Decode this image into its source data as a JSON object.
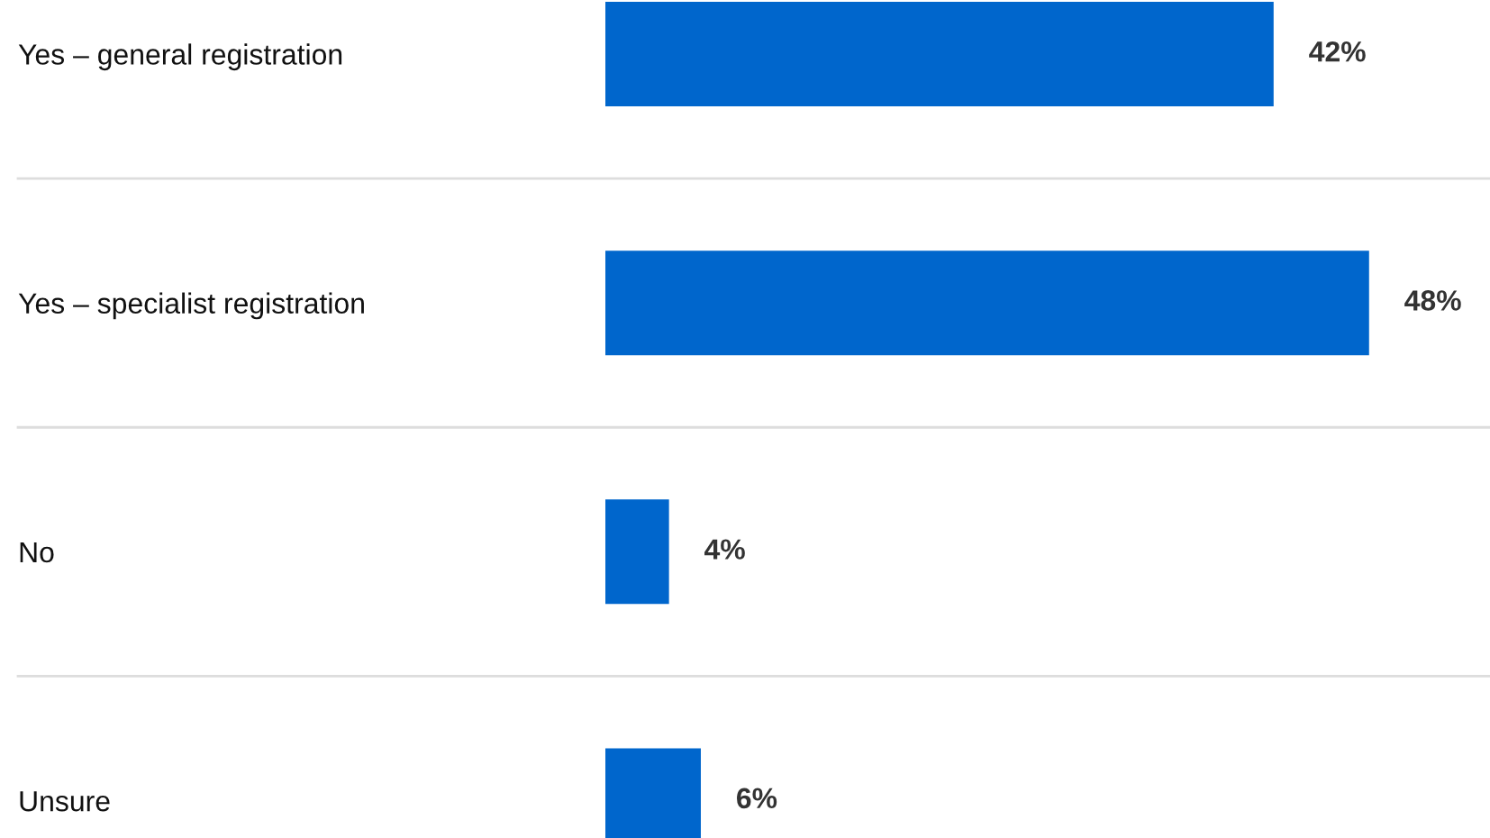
{
  "chart_data": {
    "type": "bar",
    "orientation": "horizontal",
    "categories": [
      "Yes – general registration",
      "Yes – specialist registration",
      "No",
      "Unsure"
    ],
    "values": [
      42,
      48,
      4,
      6
    ],
    "color": "#0066cc",
    "tick_labels": "y",
    "data_labels": true,
    "value_labels": [
      "42%",
      "48%",
      "4%",
      "6%"
    ],
    "grid": "y"
  }
}
